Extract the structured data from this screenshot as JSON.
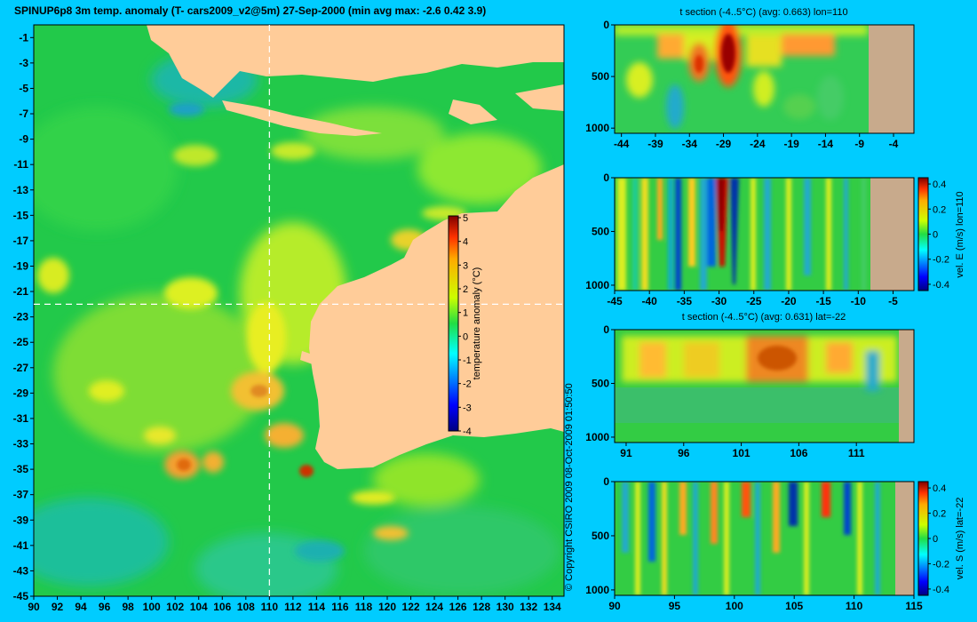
{
  "title": "SPINUP6p8 3m temp. anomaly (T- cars2009_v2@5m) 27-Sep-2000 (min avg max: -2.6 0.42 3.9)",
  "copyright": "© Copyright CSIRO 2009   08-Oct-2009 01:50:50",
  "colors": {
    "background": "#00ccff",
    "land": "#ffcc99",
    "section_land": "#c8aa8c",
    "guide_line": "#ffffff"
  },
  "chart_data": [
    {
      "id": "map",
      "type": "heatmap",
      "title": "SPINUP6p8 3m temp. anomaly (T- cars2009_v2@5m) 27-Sep-2000 (min avg max: -2.6 0.42 3.9)",
      "x_ticks": [
        "90",
        "92",
        "94",
        "96",
        "98",
        "100",
        "102",
        "104",
        "106",
        "108",
        "110",
        "112",
        "114",
        "116",
        "118",
        "120",
        "122",
        "124",
        "126",
        "128",
        "130",
        "132",
        "134"
      ],
      "y_ticks": [
        "-1",
        "-3",
        "-5",
        "-7",
        "-9",
        "-11",
        "-13",
        "-15",
        "-17",
        "-19",
        "-21",
        "-23",
        "-25",
        "-27",
        "-29",
        "-31",
        "-33",
        "-35",
        "-37",
        "-39",
        "-41",
        "-43",
        "-45"
      ],
      "xlim": [
        90,
        135
      ],
      "ylim": [
        -45,
        0
      ],
      "guide_lon": 110,
      "guide_lat": -22,
      "colorbar": {
        "label": "temperature anomaly (°C)",
        "ticks": [
          "5",
          "4",
          "3",
          "2",
          "1",
          "0",
          "-1",
          "-2",
          "-3",
          "-4"
        ],
        "range": [
          -4,
          5
        ]
      }
    },
    {
      "id": "section1",
      "type": "heatmap",
      "title": "t section (-4..5°C) (avg: 0.663) lon=110",
      "x_ticks": [
        "-44",
        "-39",
        "-34",
        "-29",
        "-24",
        "-19",
        "-14",
        "-9",
        "-4"
      ],
      "y_ticks": [
        "0",
        "500",
        "1000"
      ],
      "xlim": [
        -45,
        -1
      ],
      "ylim": [
        0,
        1050
      ]
    },
    {
      "id": "section2",
      "type": "heatmap",
      "title": "",
      "x_ticks": [
        "-45",
        "-40",
        "-35",
        "-30",
        "-25",
        "-20",
        "-15",
        "-10",
        "-5"
      ],
      "y_ticks": [
        "0",
        "500",
        "1000"
      ],
      "xlim": [
        -45,
        -2
      ],
      "ylim": [
        0,
        1050
      ],
      "colorbar": {
        "label": "vel. E (m/s) lon=110",
        "ticks": [
          "0.4",
          "0.2",
          "0",
          "-0.2",
          "-0.4"
        ],
        "range": [
          -0.45,
          0.45
        ]
      }
    },
    {
      "id": "section3",
      "type": "heatmap",
      "title": "t section (-4..5°C) (avg: 0.631) lat=-22",
      "x_ticks": [
        "91",
        "96",
        "101",
        "106",
        "111"
      ],
      "y_ticks": [
        "0",
        "500",
        "1000"
      ],
      "xlim": [
        90,
        116
      ],
      "ylim": [
        0,
        1050
      ]
    },
    {
      "id": "section4",
      "type": "heatmap",
      "title": "",
      "x_ticks": [
        "90",
        "95",
        "100",
        "105",
        "110",
        "115"
      ],
      "y_ticks": [
        "0",
        "500",
        "1000"
      ],
      "xlim": [
        90,
        115
      ],
      "ylim": [
        0,
        1050
      ],
      "colorbar": {
        "label": "vel. S (m/s) lat=-22",
        "ticks": [
          "0.4",
          "0.2",
          "0",
          "-0.2",
          "-0.4"
        ],
        "range": [
          -0.45,
          0.45
        ]
      }
    }
  ]
}
